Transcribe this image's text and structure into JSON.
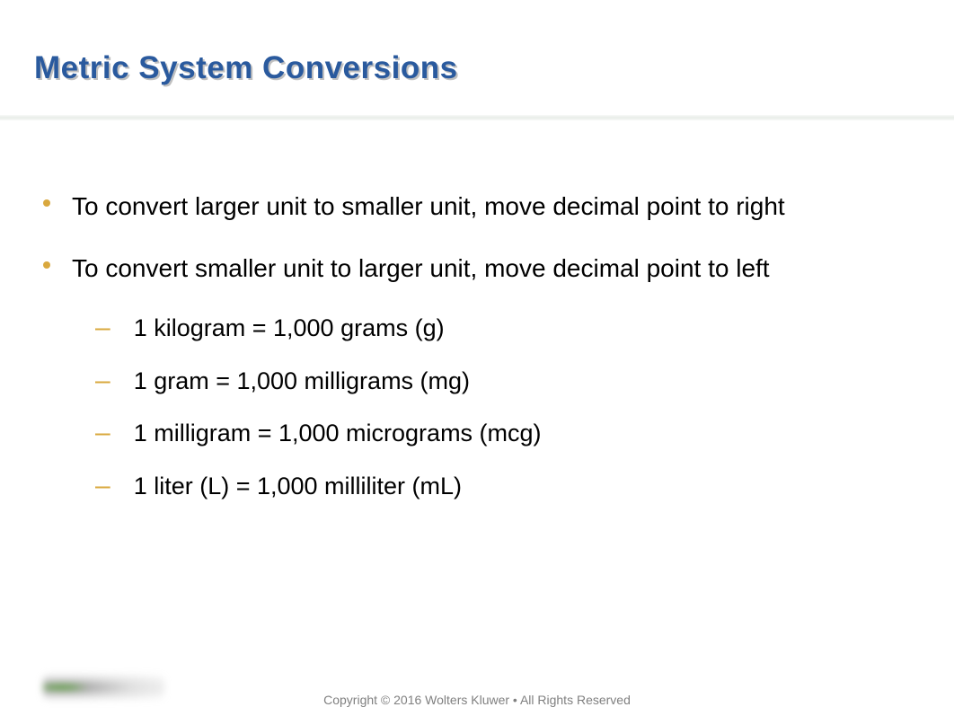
{
  "title": "Metric System Conversions",
  "title_color": "#2a5a9e",
  "title_shadow": "#c0c0c0",
  "title_fontsize": 35,
  "bullet_color": "#d9a83e",
  "body_fontsize": 28,
  "sub_fontsize": 27,
  "background_color": "#ffffff",
  "bullets": [
    {
      "text": "To convert larger unit to smaller unit, move decimal point to right",
      "subs": []
    },
    {
      "text": "To convert smaller unit to larger unit, move decimal point to left",
      "subs": [
        "1 kilogram = 1,000 grams (g)",
        "1 gram = 1,000 milligrams (mg)",
        "1 milligram = 1,000 micrograms (mcg)",
        "1 liter (L) = 1,000 milliliter (mL)"
      ]
    }
  ],
  "footer": "Copyright © 2016 Wolters Kluwer • All Rights Reserved"
}
